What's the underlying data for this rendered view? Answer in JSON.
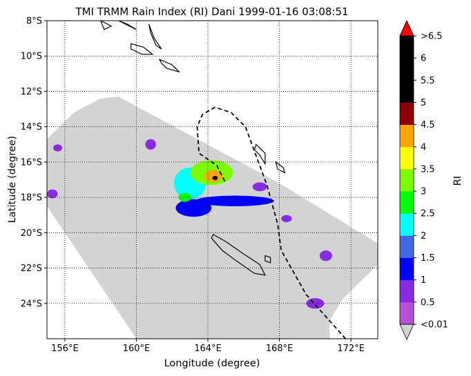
{
  "title": "TMI TRMM Rain Index (RI) Dani 1999-01-16 03:08:51",
  "x_axis": {
    "label": "Longitude (degree)",
    "ticks": [
      {
        "value": 156,
        "label": "156°E"
      },
      {
        "value": 160,
        "label": "160°E"
      },
      {
        "value": 164,
        "label": "164°E"
      },
      {
        "value": 168,
        "label": "168°E"
      },
      {
        "value": 172,
        "label": "172°E"
      }
    ]
  },
  "y_axis": {
    "label": "Latitude (degree)",
    "ticks": [
      {
        "value": -8,
        "label": "8°S"
      },
      {
        "value": -10,
        "label": "10°S"
      },
      {
        "value": -12,
        "label": "12°S"
      },
      {
        "value": -14,
        "label": "14°S"
      },
      {
        "value": -16,
        "label": "16°S"
      },
      {
        "value": -18,
        "label": "18°S"
      },
      {
        "value": -20,
        "label": "20°S"
      },
      {
        "value": -22,
        "label": "22°S"
      },
      {
        "value": -24,
        "label": "24°S"
      }
    ]
  },
  "map": {
    "lon_range": [
      155,
      173.5
    ],
    "lat_range": [
      -26,
      -8
    ],
    "gridlines": "dotted",
    "swath_color": "#d3d3d3",
    "storm_track": "dashed black line",
    "swath": [
      [
        155,
        -14.7
      ],
      [
        156.5,
        -13.2
      ],
      [
        158,
        -12.4
      ],
      [
        159,
        -12.3
      ],
      [
        168,
        -17.2
      ],
      [
        173.5,
        -20.6
      ],
      [
        173.5,
        -21.8
      ],
      [
        172.5,
        -22.8
      ],
      [
        171.5,
        -23.8
      ],
      [
        170.8,
        -25
      ],
      [
        170.8,
        -26
      ],
      [
        160,
        -26
      ],
      [
        155,
        -18.5
      ]
    ],
    "track": [
      [
        171.7,
        -26
      ],
      [
        169.5,
        -23.5
      ],
      [
        168.1,
        -21
      ],
      [
        167.9,
        -19.5
      ],
      [
        167.3,
        -17.3
      ],
      [
        166.1,
        -14
      ],
      [
        165.3,
        -13.2
      ],
      [
        164.4,
        -12.9
      ],
      [
        163.7,
        -13.3
      ],
      [
        163.4,
        -14
      ],
      [
        163.5,
        -15.5
      ],
      [
        164.5,
        -16.2
      ],
      [
        165,
        -17.2
      ]
    ],
    "islands": [
      [
        [
          164.3,
          -20.1
        ],
        [
          165,
          -20.5
        ],
        [
          166,
          -21.2
        ],
        [
          166.9,
          -21.8
        ],
        [
          167.2,
          -22.4
        ],
        [
          166.6,
          -22.3
        ],
        [
          165.6,
          -21.6
        ],
        [
          164.8,
          -21
        ],
        [
          164.2,
          -20.3
        ]
      ],
      [
        [
          167.2,
          -21.3
        ],
        [
          167.5,
          -21.4
        ],
        [
          167.5,
          -21.7
        ],
        [
          167.2,
          -21.6
        ]
      ],
      [
        [
          166.7,
          -15
        ],
        [
          167.2,
          -15.5
        ],
        [
          167.2,
          -16.1
        ],
        [
          166.9,
          -15.6
        ],
        [
          166.6,
          -15.3
        ]
      ],
      [
        [
          167.8,
          -16
        ],
        [
          168.2,
          -16.3
        ],
        [
          168.3,
          -16.6
        ],
        [
          167.9,
          -16.4
        ]
      ],
      [
        [
          158,
          -8
        ],
        [
          158.6,
          -8.3
        ],
        [
          158.2,
          -8.5
        ]
      ],
      [
        [
          159,
          -8
        ],
        [
          160,
          -8.5
        ],
        [
          159.5,
          -8.2
        ]
      ],
      [
        [
          160.7,
          -8.2
        ],
        [
          161,
          -9
        ],
        [
          161.4,
          -9.6
        ],
        [
          161.1,
          -9.4
        ],
        [
          160.8,
          -8.7
        ]
      ],
      [
        [
          159.7,
          -9.3
        ],
        [
          160.4,
          -9.5
        ],
        [
          160.9,
          -9.9
        ],
        [
          160.3,
          -9.9
        ],
        [
          159.7,
          -9.6
        ]
      ],
      [
        [
          161.3,
          -10.2
        ],
        [
          162,
          -10.5
        ],
        [
          162.4,
          -10.9
        ],
        [
          161.7,
          -10.7
        ],
        [
          161.4,
          -10.4
        ]
      ]
    ],
    "rain_blobs": [
      {
        "lon": 164.2,
        "lat": -16.6,
        "ri": 3.0,
        "rx": 1.2,
        "ry": 0.7
      },
      {
        "lon": 164.3,
        "lat": -16.8,
        "ri": 4.0,
        "rx": 0.5,
        "ry": 0.35
      },
      {
        "lon": 164.4,
        "lat": -16.9,
        "ri": 5.0,
        "rx": 0.15,
        "ry": 0.12
      },
      {
        "lon": 163.0,
        "lat": -17.2,
        "ri": 2.0,
        "rx": 0.9,
        "ry": 0.9
      },
      {
        "lon": 165.5,
        "lat": -18.2,
        "ri": 1.0,
        "rx": 2.2,
        "ry": 0.3
      },
      {
        "lon": 163.2,
        "lat": -18.6,
        "ri": 1.0,
        "rx": 1.0,
        "ry": 0.5
      },
      {
        "lon": 162.7,
        "lat": -18.0,
        "ri": 2.5,
        "rx": 0.35,
        "ry": 0.25
      },
      {
        "lon": 160.8,
        "lat": -15.0,
        "ri": 0.5,
        "rx": 0.3,
        "ry": 0.3
      },
      {
        "lon": 155.6,
        "lat": -15.2,
        "ri": 0.5,
        "rx": 0.25,
        "ry": 0.2
      },
      {
        "lon": 155.3,
        "lat": -17.8,
        "ri": 0.5,
        "rx": 0.3,
        "ry": 0.25
      },
      {
        "lon": 170.0,
        "lat": -24.0,
        "ri": 0.5,
        "rx": 0.5,
        "ry": 0.3
      },
      {
        "lon": 170.6,
        "lat": -21.3,
        "ri": 0.5,
        "rx": 0.35,
        "ry": 0.3
      },
      {
        "lon": 168.4,
        "lat": -19.2,
        "ri": 0.5,
        "rx": 0.3,
        "ry": 0.2
      },
      {
        "lon": 166.9,
        "lat": -17.4,
        "ri": 0.5,
        "rx": 0.4,
        "ry": 0.25
      }
    ]
  },
  "colorbar": {
    "label": "RI",
    "bins": [
      {
        "color": "#b650d8",
        "label": "<0.01"
      },
      {
        "color": "#8a2be2",
        "label": "0.5"
      },
      {
        "color": "#0000ff",
        "label": "1"
      },
      {
        "color": "#4169e1",
        "label": "1.5"
      },
      {
        "color": "#00ffff",
        "label": "2"
      },
      {
        "color": "#00ff00",
        "label": "2.5"
      },
      {
        "color": "#7cfc00",
        "label": "3"
      },
      {
        "color": "#ffff00",
        "label": "3.5"
      },
      {
        "color": "#ffa500",
        "label": "4"
      },
      {
        "color": "#8b0000",
        "label": "4.5"
      },
      {
        "color": "#000000",
        "label": "5"
      },
      {
        "color": "#000000",
        "label": "5.5"
      },
      {
        "color": "#000000",
        "label": "6"
      },
      {
        "color": "#ff0000",
        "label": ">6.5"
      }
    ],
    "under_color": "#d3d3d3",
    "over_color": "#ff0000"
  }
}
